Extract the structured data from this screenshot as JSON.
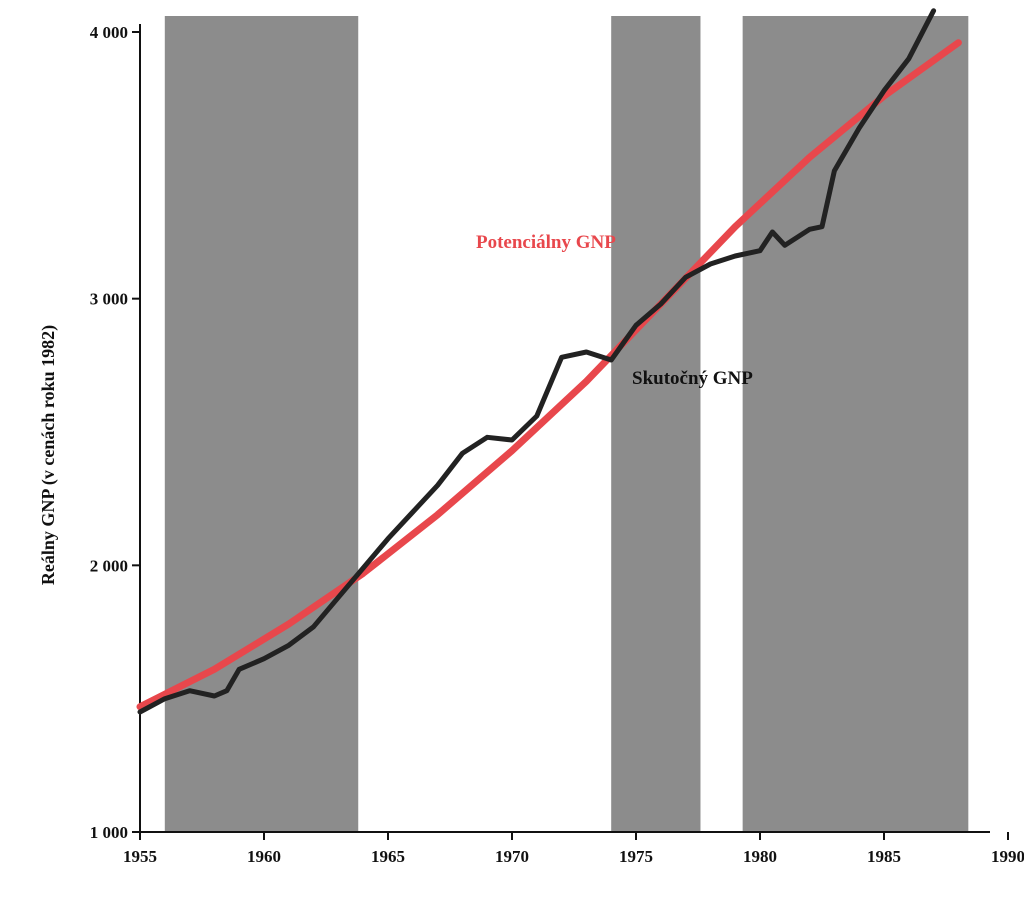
{
  "chart_data": {
    "type": "line",
    "title": "",
    "xlabel": "",
    "ylabel": "Reálny GNP (v cenách roku 1982)",
    "xlim": [
      1955,
      1990
    ],
    "ylim": [
      1000,
      4000
    ],
    "x_ticks": [
      1955,
      1960,
      1965,
      1970,
      1975,
      1980,
      1985,
      1990
    ],
    "x_tick_labels": [
      "1955",
      "1960",
      "1965",
      "1970",
      "1975",
      "1980",
      "1985",
      "1990"
    ],
    "y_ticks": [
      1000,
      2000,
      3000,
      4000
    ],
    "y_tick_labels": [
      "1 000",
      "2 000",
      "3 000",
      "4 000"
    ],
    "grid": false,
    "legend": "inline labels",
    "shaded_periods": [
      {
        "start": 1956.0,
        "end": 1963.8
      },
      {
        "start": 1974.0,
        "end": 1977.6
      },
      {
        "start": 1979.3,
        "end": 1988.4
      }
    ],
    "series": [
      {
        "name": "Potenciálny GNP",
        "color": "#e8474c",
        "x": [
          1955,
          1958,
          1961,
          1964,
          1967,
          1970,
          1973,
          1976,
          1979,
          1982,
          1985,
          1988
        ],
        "values": [
          1470,
          1610,
          1780,
          1970,
          2190,
          2430,
          2690,
          2980,
          3270,
          3530,
          3760,
          3960
        ]
      },
      {
        "name": "Skutočný GNP",
        "color": "#222222",
        "x": [
          1955,
          1956,
          1957,
          1958,
          1958.5,
          1959,
          1960,
          1961,
          1962,
          1963,
          1964,
          1965,
          1966,
          1967,
          1968,
          1969,
          1970,
          1971,
          1972,
          1973,
          1974,
          1975,
          1976,
          1977,
          1978,
          1979,
          1980,
          1980.5,
          1981,
          1981.5,
          1982,
          1982.5,
          1983,
          1984,
          1985,
          1986,
          1987
        ],
        "values": [
          1450,
          1500,
          1530,
          1510,
          1530,
          1610,
          1650,
          1700,
          1770,
          1880,
          1990,
          2100,
          2200,
          2300,
          2420,
          2480,
          2470,
          2560,
          2780,
          2800,
          2770,
          2900,
          2980,
          3080,
          3130,
          3160,
          3180,
          3250,
          3200,
          3230,
          3260,
          3270,
          3480,
          3640,
          3780,
          3900,
          4080
        ]
      }
    ]
  }
}
